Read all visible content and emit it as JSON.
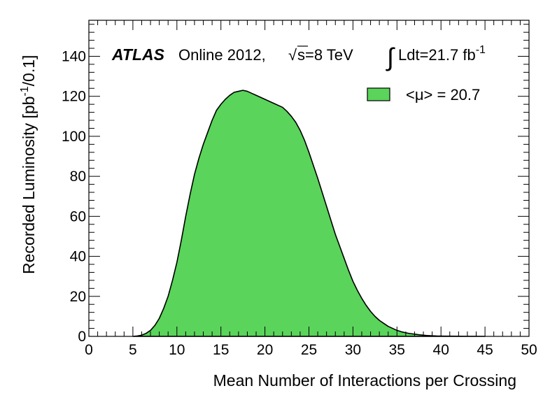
{
  "chart_data": {
    "type": "area",
    "xlabel": "Mean Number of Interactions per Crossing",
    "ylabel": "Recorded Luminosity [pb",
    "ylabel_sup": "-1",
    "ylabel_tail": "/0.1]",
    "xlim": [
      0,
      50
    ],
    "ylim": [
      0,
      158
    ],
    "xticks": [
      0,
      5,
      10,
      15,
      20,
      25,
      30,
      35,
      40,
      45,
      50
    ],
    "yticks": [
      0,
      20,
      40,
      60,
      80,
      100,
      120,
      140
    ],
    "grid": false,
    "fill_color": "#5ad45a",
    "line_color": "#000000",
    "annotations": {
      "experiment": "ATLAS",
      "status": "Online 2012,",
      "sqrt": "√",
      "energy": "s=8 TeV",
      "integral": "∫",
      "lumi": "Ldt=21.7 fb",
      "lumi_sup": "-1"
    },
    "legend": {
      "placement": "top-right",
      "label": "<μ> = 20.7"
    },
    "series": [
      {
        "x": [
          5,
          5.5,
          6,
          6.5,
          7,
          7.5,
          8,
          8.5,
          9,
          9.5,
          10,
          10.5,
          11,
          11.5,
          12,
          12.5,
          13,
          13.5,
          14,
          14.5,
          15,
          15.5,
          16,
          16.5,
          17,
          17.5,
          18,
          18.5,
          19,
          19.5,
          20,
          20.5,
          21,
          21.5,
          22,
          22.5,
          23,
          23.5,
          24,
          24.5,
          25,
          25.5,
          26,
          26.5,
          27,
          27.5,
          28,
          28.5,
          29,
          29.5,
          30,
          30.5,
          31,
          31.5,
          32,
          32.5,
          33,
          33.5,
          34,
          34.5,
          35,
          35.5,
          36,
          36.5,
          37,
          37.5,
          38,
          38.5,
          39,
          39.5,
          40,
          41,
          42,
          43,
          44,
          45
        ],
        "values": [
          0,
          0.2,
          0.6,
          1.5,
          3,
          5.5,
          9,
          14,
          20,
          28,
          37,
          48,
          60,
          71,
          81,
          89,
          96,
          102,
          108,
          113,
          116,
          118.5,
          120.5,
          122,
          122.5,
          123,
          122.5,
          121.5,
          120.5,
          119.5,
          118.5,
          117.5,
          116.5,
          115.5,
          114.5,
          112.5,
          110,
          107,
          103,
          98,
          92,
          85.5,
          79,
          72,
          65,
          58,
          51,
          45,
          39,
          33,
          27.5,
          23,
          19,
          15.5,
          12.5,
          10,
          8,
          6.5,
          5,
          4,
          3,
          2.3,
          1.8,
          1.4,
          1.1,
          0.8,
          0.6,
          0.4,
          0.3,
          0.2,
          0.15,
          0.1,
          0.05,
          0.02,
          0.01,
          0
        ]
      }
    ]
  }
}
